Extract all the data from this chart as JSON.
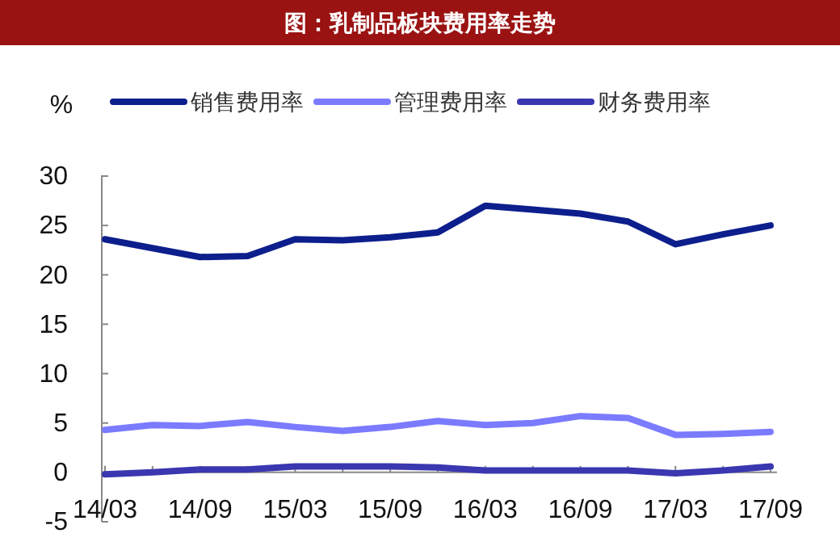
{
  "chart_data": {
    "type": "line",
    "title": "图：乳制品板块费用率走势",
    "ylabel": "%",
    "categories": [
      "14/03",
      null,
      "14/09",
      null,
      "15/03",
      null,
      "15/09",
      null,
      "16/03",
      null,
      "16/09",
      null,
      "17/03",
      null,
      "17/09"
    ],
    "series": [
      {
        "name": "销售费用率",
        "color": "#0d1f8c",
        "values": [
          23.6,
          22.7,
          21.8,
          21.9,
          23.6,
          23.5,
          23.8,
          24.3,
          27.0,
          26.6,
          26.2,
          25.4,
          23.1,
          24.1,
          25.0
        ]
      },
      {
        "name": "管理费用率",
        "color": "#7b7bff",
        "values": [
          4.3,
          4.8,
          4.7,
          5.1,
          4.6,
          4.2,
          4.6,
          5.2,
          4.8,
          5.0,
          5.7,
          5.5,
          3.8,
          3.9,
          4.1
        ]
      },
      {
        "name": "财务费用率",
        "color": "#3a37b0",
        "values": [
          -0.2,
          0.0,
          0.3,
          0.3,
          0.6,
          0.6,
          0.6,
          0.5,
          0.2,
          0.2,
          0.2,
          0.2,
          -0.1,
          0.2,
          0.6
        ]
      }
    ],
    "ylim": [
      -5,
      30
    ],
    "yticks": [
      -5,
      0,
      5,
      10,
      15,
      20,
      25,
      30
    ],
    "legend": "top",
    "grid": false,
    "marker": "none",
    "line_style": "solid"
  }
}
